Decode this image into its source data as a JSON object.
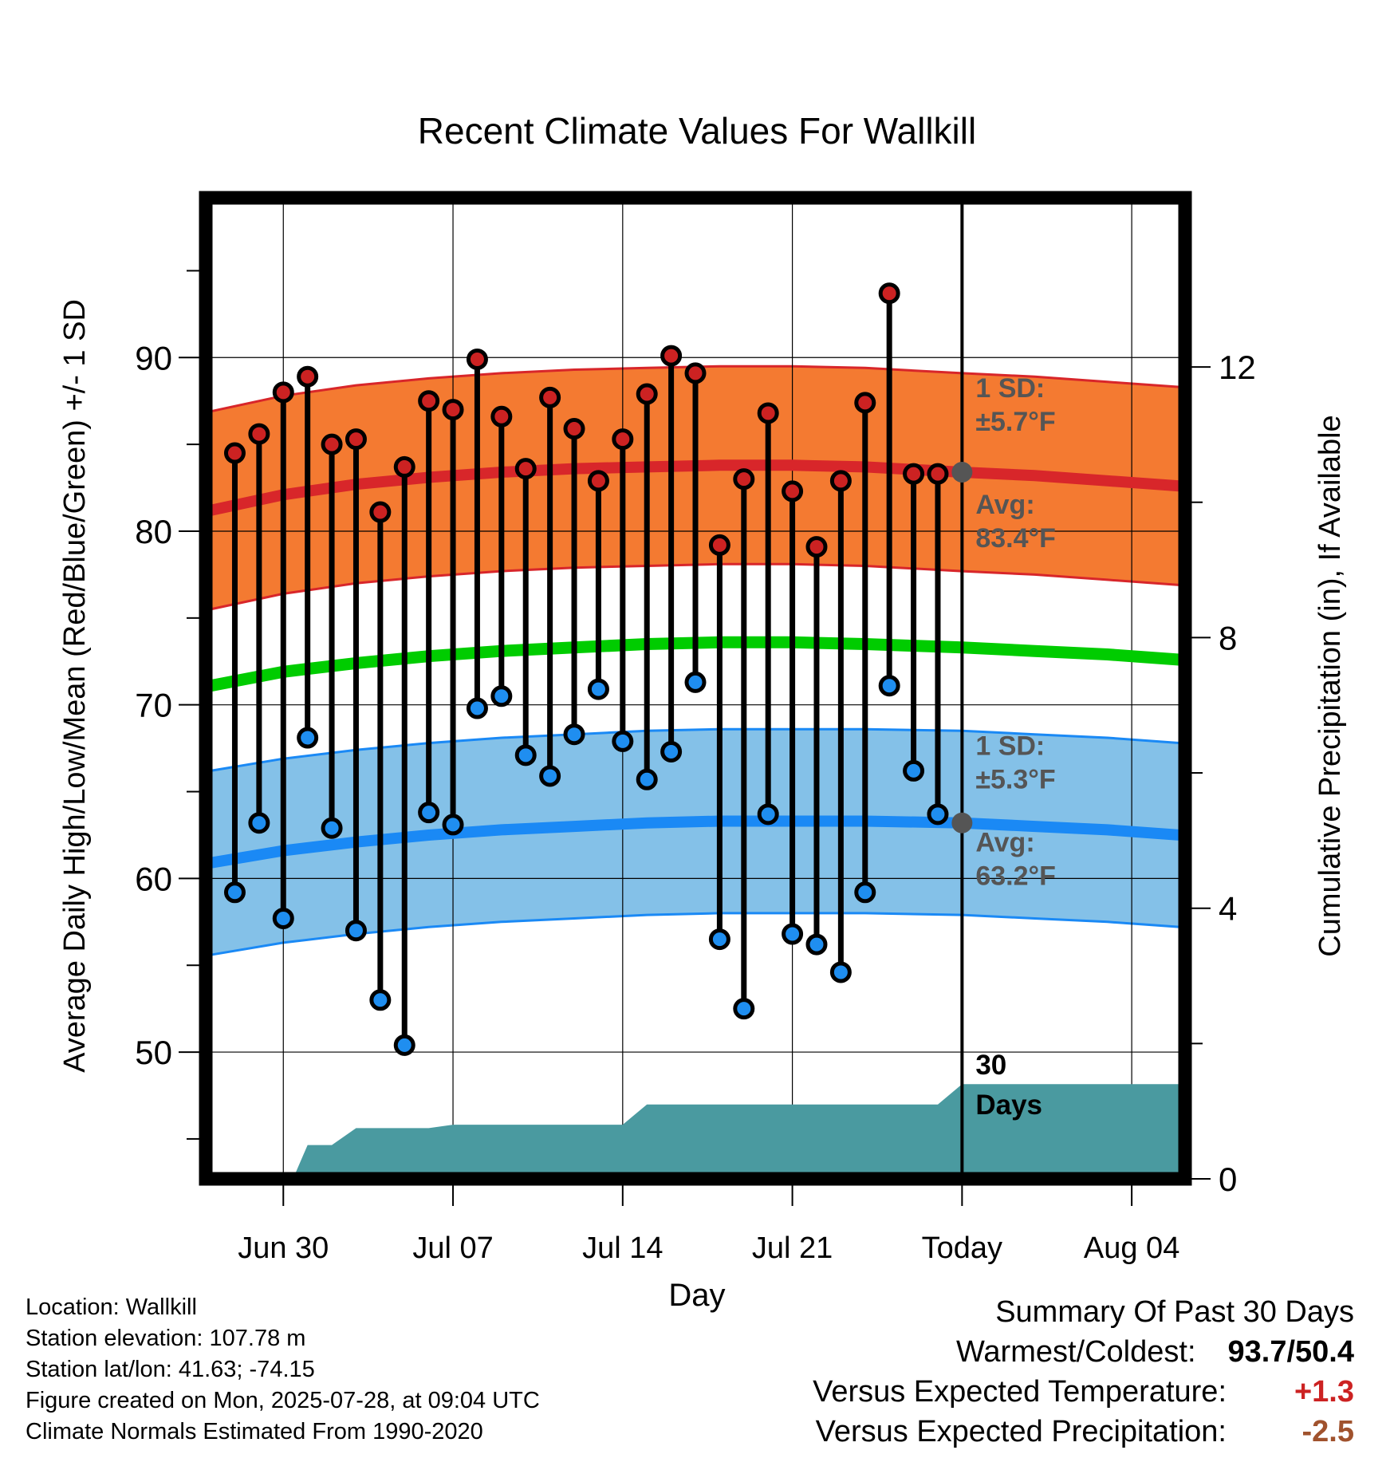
{
  "chart_data": {
    "type": "line",
    "title": "Recent Climate Values For Wallkill",
    "xlabel": "Day",
    "ylabel": "Average Daily High/Low/Mean (Red/Blue/Green) +/- 1 SD",
    "y2label": "Cumulative Precipitation (in), If Available",
    "xlim": [
      -3.2,
      37.2
    ],
    "ylim": [
      42.7,
      99.2
    ],
    "y2lim": [
      0,
      14.5
    ],
    "y_ticks": [
      50,
      60,
      70,
      80,
      90
    ],
    "y_tick_labels": [
      "50",
      "60",
      "70",
      "80",
      "90"
    ],
    "y2_ticks": [
      0,
      4,
      8,
      12
    ],
    "y2_tick_labels": [
      "0",
      "4",
      "8",
      "12"
    ],
    "x_ticks": [
      0,
      7,
      14,
      21,
      28,
      35
    ],
    "x_tick_labels": [
      "Jun 30",
      "Jul 07",
      "Jul 14",
      "Jul 21",
      "Today",
      "Aug 04"
    ],
    "today_x": 28,
    "grid": true,
    "days": [
      -2,
      -1,
      0,
      1,
      2,
      3,
      4,
      5,
      6,
      7,
      8,
      9,
      10,
      11,
      12,
      13,
      14,
      15,
      16,
      17,
      18,
      19,
      20,
      21,
      22,
      23,
      24,
      25,
      26,
      27
    ],
    "daily_high": [
      84.5,
      85.6,
      88.0,
      88.9,
      85.0,
      85.3,
      81.1,
      83.7,
      87.5,
      87.0,
      89.9,
      86.6,
      83.6,
      87.7,
      85.9,
      82.9,
      85.3,
      87.9,
      90.1,
      89.1,
      79.2,
      83.0,
      86.8,
      82.3,
      79.1,
      82.9,
      87.4,
      93.7,
      83.3,
      83.3
    ],
    "daily_low": [
      59.2,
      63.2,
      57.7,
      68.1,
      62.9,
      57.0,
      53.0,
      50.4,
      63.8,
      63.1,
      69.8,
      70.5,
      67.1,
      65.9,
      68.3,
      70.9,
      67.9,
      65.7,
      67.3,
      71.3,
      56.5,
      52.5,
      63.7,
      56.8,
      56.2,
      54.6,
      59.2,
      71.1,
      66.2,
      63.7
    ],
    "normal_x": [
      -3,
      0,
      3,
      6,
      9,
      12,
      15,
      18,
      21,
      24,
      28,
      31,
      34,
      37
    ],
    "normal_high": [
      81.2,
      82.1,
      82.7,
      83.1,
      83.4,
      83.6,
      83.7,
      83.8,
      83.8,
      83.7,
      83.4,
      83.2,
      82.9,
      82.6
    ],
    "normal_low": [
      60.9,
      61.6,
      62.1,
      62.5,
      62.8,
      63.0,
      63.2,
      63.3,
      63.3,
      63.3,
      63.2,
      63.0,
      62.8,
      62.5
    ],
    "normal_mean": [
      71.1,
      71.9,
      72.4,
      72.8,
      73.1,
      73.3,
      73.5,
      73.6,
      73.6,
      73.5,
      73.3,
      73.1,
      72.9,
      72.6
    ],
    "sd_high": 5.7,
    "sd_low": 5.3,
    "precip_steps": [
      [
        0.4,
        0
      ],
      [
        1.0,
        0.5
      ],
      [
        2.0,
        0.5
      ],
      [
        3.0,
        0.75
      ],
      [
        5.0,
        0.75
      ],
      [
        6.0,
        0.75
      ],
      [
        7.0,
        0.8
      ],
      [
        14.0,
        0.8
      ],
      [
        15.0,
        1.1
      ],
      [
        26.0,
        1.1
      ],
      [
        27.0,
        1.1
      ],
      [
        28.0,
        1.4
      ],
      [
        37.0,
        1.4
      ]
    ],
    "colors": {
      "high_band": "#f47a31",
      "high_line": "#d8262a",
      "low_band": "#84c1e8",
      "low_line": "#1a89f5",
      "mean_line": "#00cc00",
      "precip": "#4a9aa0",
      "high_dot": "#cc2222",
      "low_dot": "#1f8ef0",
      "annotation": "#555555"
    },
    "annotations": {
      "high_sd_label": "1 SD:",
      "high_sd_value": "±5.7°F",
      "high_avg_label": "Avg:",
      "high_avg_value": "83.4°F",
      "low_sd_label": "1 SD:",
      "low_sd_value": "±5.3°F",
      "low_avg_label": "Avg:",
      "low_avg_value": "63.2°F",
      "precip_label_1": "30",
      "precip_label_2": "Days"
    }
  },
  "footer": {
    "location": "Location: Wallkill",
    "elevation": "Station elevation: 107.78 m",
    "latlon": "Station lat/lon: 41.63; -74.15",
    "created": "Figure created on Mon, 2025-07-28, at 09:04 UTC",
    "normals": "Climate Normals Estimated From 1990-2020"
  },
  "summary": {
    "title": "Summary Of Past 30 Days",
    "warm_cold_label": "Warmest/Coldest:",
    "warm_cold_value": "93.7/50.4",
    "temp_label": "Versus Expected Temperature:",
    "temp_value": "+1.3",
    "temp_color": "#cc2222",
    "precip_label": "Versus Expected Precipitation:",
    "precip_value": "-2.5",
    "precip_color": "#a0522d"
  }
}
